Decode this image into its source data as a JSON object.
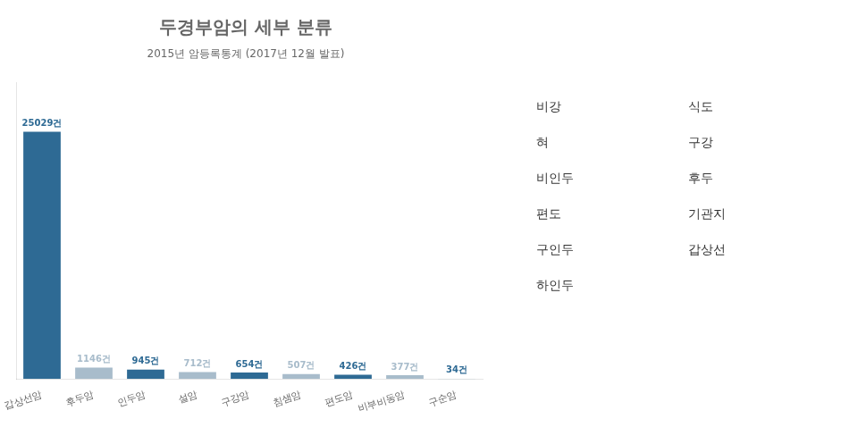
{
  "chart_data": {
    "type": "bar",
    "title": "두경부암의 세부 분류",
    "subtitle": "2015년 암등록통계 (2017년 12월 발표)",
    "categories": [
      "갑상선암",
      "후두암",
      "인두암",
      "설암",
      "구강암",
      "침샘암",
      "편도암",
      "비부비동암",
      "구순암"
    ],
    "values": [
      25029,
      1146,
      945,
      712,
      654,
      507,
      426,
      377,
      34
    ],
    "value_labels": [
      "25029건",
      "1146건",
      "945건",
      "712건",
      "654건",
      "507건",
      "426건",
      "377건",
      "34건"
    ],
    "data_labels": true,
    "colors": [
      "#2e6a94",
      "#a8bccb",
      "#2e6a94",
      "#a8bccb",
      "#2e6a94",
      "#a8bccb",
      "#2e6a94",
      "#a8bccb",
      "#2e6a94"
    ],
    "ylim": [
      0,
      30000
    ],
    "tick_labels": "x",
    "grid": false,
    "annotations": [
      "비강",
      "혀",
      "비인두",
      "편도",
      "구인두",
      "하인두",
      "식도",
      "구강",
      "후두",
      "기관지",
      "갑상선"
    ]
  }
}
